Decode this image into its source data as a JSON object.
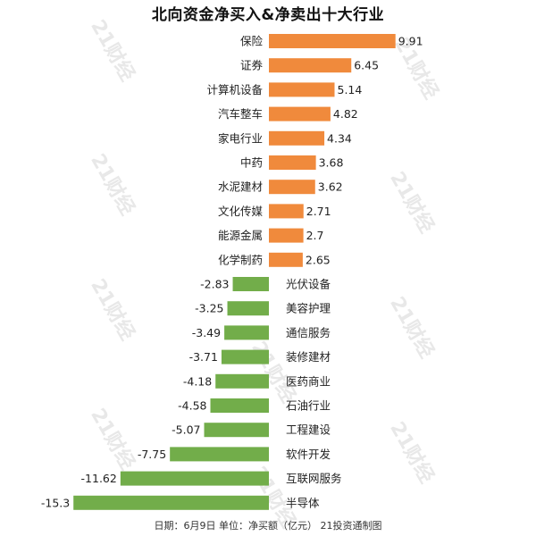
{
  "chart_data": {
    "type": "bar",
    "orientation": "horizontal",
    "title": "北向资金净买入&净卖出十大行业",
    "categories": [
      "保险",
      "证券",
      "计算机设备",
      "汽车整车",
      "家电行业",
      "中药",
      "水泥建材",
      "文化传媒",
      "能源金属",
      "化学制药",
      "光伏设备",
      "美容护理",
      "通信服务",
      "装修建材",
      "医药商业",
      "石油行业",
      "工程建设",
      "软件开发",
      "互联网服务",
      "半导体"
    ],
    "values": [
      9.91,
      6.45,
      5.14,
      4.82,
      4.34,
      3.68,
      3.62,
      2.71,
      2.7,
      2.65,
      -2.83,
      -3.25,
      -3.49,
      -3.71,
      -4.18,
      -4.58,
      -5.07,
      -7.75,
      -11.62,
      -15.3
    ],
    "value_labels": [
      "9.91",
      "6.45",
      "5.14",
      "4.82",
      "4.34",
      "3.68",
      "3.62",
      "2.71",
      "2.7",
      "2.65",
      "-2.83",
      "-3.25",
      "-3.49",
      "-3.71",
      "-4.18",
      "-4.58",
      "-5.07",
      "-7.75",
      "-11.62",
      "-15.3"
    ],
    "colors": {
      "positive": "#f08a3c",
      "negative": "#72ad4a"
    },
    "grid": false,
    "legend": "none"
  },
  "footer": "日期：6月9日  单位：净买额（亿元）  21投资通制图",
  "watermark_text": "21财经"
}
